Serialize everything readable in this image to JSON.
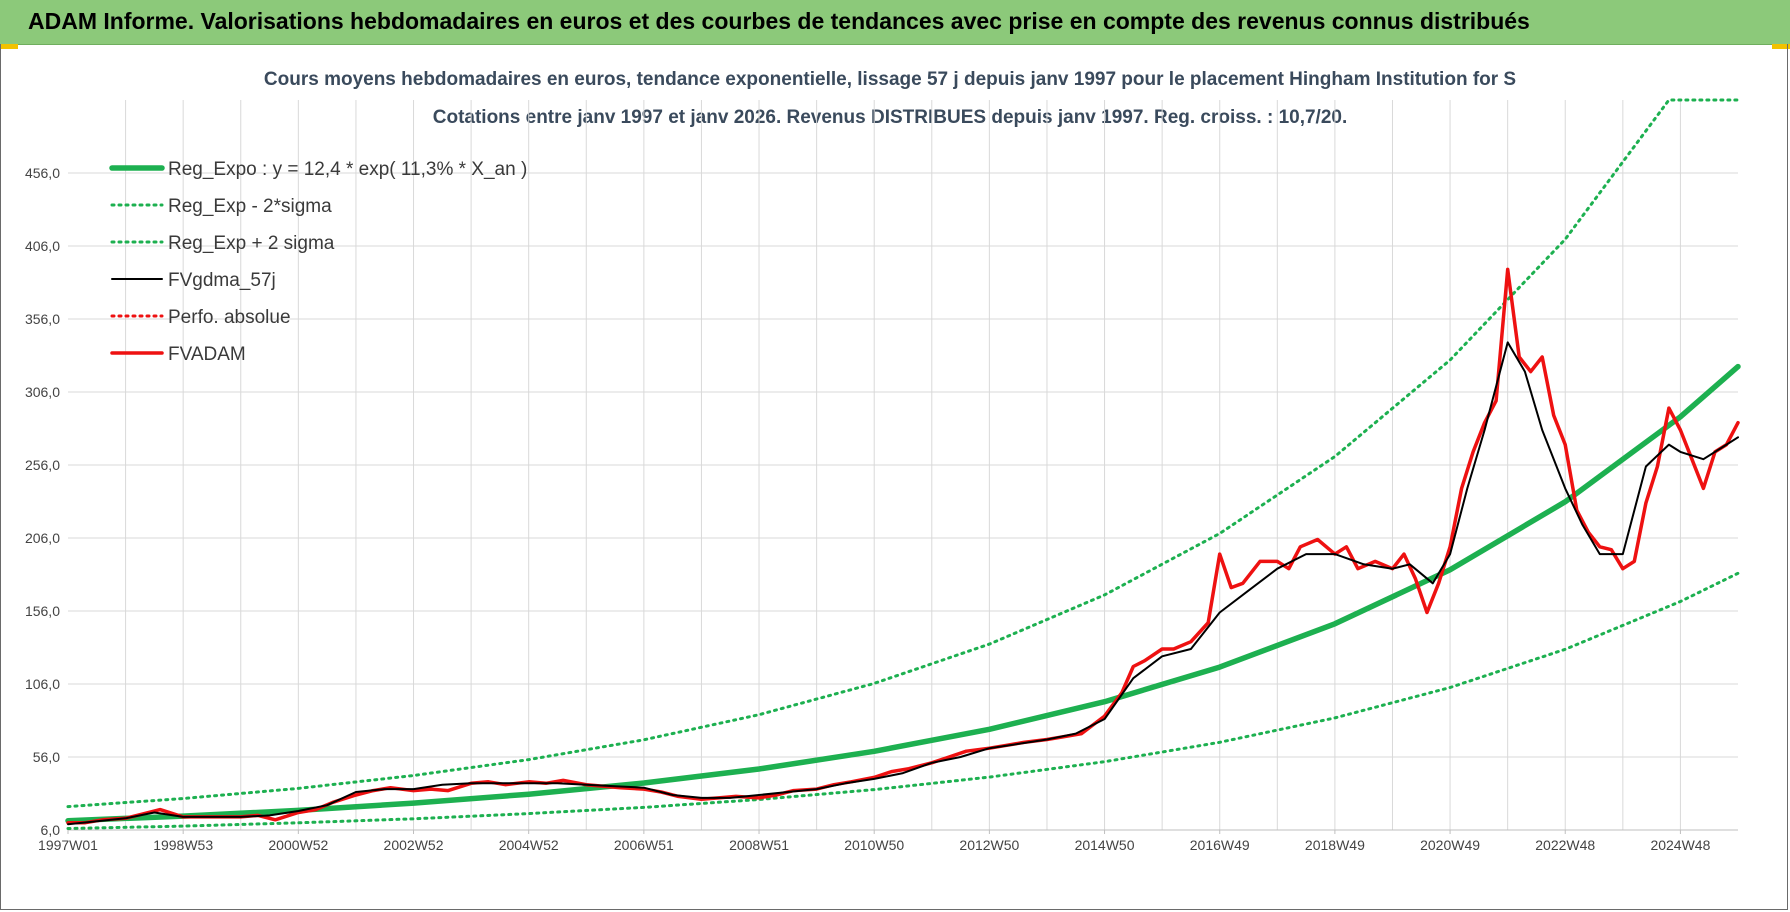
{
  "banner": {
    "title": "ADAM Informe. Valorisations hebdomadaires en euros et des courbes de tendances avec prise en compte des revenus connus distribués"
  },
  "colors": {
    "banner_bg": "#8cc97a",
    "trend_green": "#1db050",
    "price_red": "#ee1111",
    "smooth_black": "#000000",
    "grid": "#d9d9d9"
  },
  "chart_data": {
    "type": "line",
    "title_line1": "Cours moyens hebdomadaires en euros, tendance exponentielle, lissage 57 j depuis janv 1997  pour le placement Hingham Institution for S",
    "title_line2": "Cotations entre janv 1997 et janv 2026. Revenus DISTRIBUES depuis janv 1997. Reg. croiss. : 10,7/20.",
    "xlabel": "",
    "ylabel": "",
    "ylim": [
      6,
      506
    ],
    "xlim": [
      1997.0,
      2026.0
    ],
    "grid": true,
    "legend_position": "top-left",
    "y_ticks": [
      "6,0",
      "56,0",
      "106,0",
      "156,0",
      "206,0",
      "256,0",
      "306,0",
      "356,0",
      "406,0",
      "456,0"
    ],
    "x_ticks": [
      {
        "label": "1997W01",
        "x": 1997.0
      },
      {
        "label": "1998W53",
        "x": 1999.0
      },
      {
        "label": "2000W52",
        "x": 2001.0
      },
      {
        "label": "2002W52",
        "x": 2003.0
      },
      {
        "label": "2004W52",
        "x": 2005.0
      },
      {
        "label": "2006W51",
        "x": 2007.0
      },
      {
        "label": "2008W51",
        "x": 2009.0
      },
      {
        "label": "2010W50",
        "x": 2011.0
      },
      {
        "label": "2012W50",
        "x": 2013.0
      },
      {
        "label": "2014W50",
        "x": 2015.0
      },
      {
        "label": "2016W49",
        "x": 2017.0
      },
      {
        "label": "2018W49",
        "x": 2019.0
      },
      {
        "label": "2020W49",
        "x": 2021.0
      },
      {
        "label": "2022W48",
        "x": 2023.0
      },
      {
        "label": "2024W48",
        "x": 2025.0
      }
    ],
    "series": [
      {
        "name": "Reg_Expo : y = 12,4 * exp( 11,3% *  X_an )",
        "style": "solid-thick",
        "color": "#1db050",
        "x": [
          1997.0,
          1999.0,
          2001.0,
          2003.0,
          2005.0,
          2007.0,
          2009.0,
          2011.0,
          2013.0,
          2015.0,
          2017.0,
          2019.0,
          2021.0,
          2023.0,
          2025.0,
          2026.0
        ],
        "y": [
          12.4,
          15.5,
          19.4,
          24.4,
          30.5,
          38.2,
          47.8,
          59.9,
          75.0,
          93.9,
          117.6,
          147.2,
          184.3,
          230.8,
          289.0,
          323.4
        ]
      },
      {
        "name": "Reg_Exp - 2*sigma",
        "style": "dotted",
        "color": "#1db050",
        "x": [
          1997.0,
          1999.0,
          2001.0,
          2003.0,
          2005.0,
          2007.0,
          2009.0,
          2011.0,
          2013.0,
          2015.0,
          2017.0,
          2019.0,
          2021.0,
          2023.0,
          2025.0,
          2026.0
        ],
        "y": [
          7.0,
          8.7,
          10.9,
          13.7,
          17.2,
          21.5,
          26.9,
          33.7,
          42.2,
          52.8,
          66.1,
          82.8,
          103.6,
          129.8,
          162.5,
          181.8
        ]
      },
      {
        "name": "Reg_Exp + 2 sigma",
        "style": "dotted",
        "color": "#1db050",
        "x": [
          1997.0,
          1999.0,
          2001.0,
          2003.0,
          2005.0,
          2007.0,
          2009.0,
          2011.0,
          2013.0,
          2015.0,
          2017.0,
          2019.0,
          2021.0,
          2023.0,
          2024.8,
          2026.0
        ],
        "y": [
          22.0,
          27.6,
          34.5,
          43.3,
          54.2,
          67.8,
          85.0,
          106.4,
          133.3,
          167.0,
          209.1,
          261.8,
          327.9,
          410.6,
          506.0,
          506.0
        ]
      },
      {
        "name": "FVgdma_57j",
        "style": "solid-thin",
        "color": "#000000",
        "x": [
          1997.0,
          1997.5,
          1998.0,
          1998.5,
          1999.0,
          1999.5,
          2000.0,
          2000.5,
          2001.0,
          2001.5,
          2002.0,
          2002.5,
          2003.0,
          2003.5,
          2004.0,
          2004.5,
          2005.0,
          2005.5,
          2006.0,
          2006.5,
          2007.0,
          2007.5,
          2008.0,
          2008.5,
          2009.0,
          2009.5,
          2010.0,
          2010.5,
          2011.0,
          2011.5,
          2012.0,
          2012.5,
          2013.0,
          2013.5,
          2014.0,
          2014.5,
          2015.0,
          2015.5,
          2016.0,
          2016.5,
          2017.0,
          2017.5,
          2018.0,
          2018.5,
          2019.0,
          2019.5,
          2020.0,
          2020.3,
          2020.7,
          2021.0,
          2021.3,
          2021.6,
          2022.0,
          2022.3,
          2022.6,
          2023.0,
          2023.3,
          2023.6,
          2024.0,
          2024.4,
          2024.8,
          2025.0,
          2025.4,
          2025.8,
          2026.0
        ],
        "y": [
          10,
          12,
          14,
          18,
          15,
          15,
          15,
          16,
          19,
          23,
          32,
          34,
          34,
          37,
          38,
          38,
          38,
          38,
          37,
          36,
          35,
          30,
          28,
          28,
          30,
          32,
          34,
          38,
          41,
          45,
          52,
          56,
          62,
          65,
          68,
          72,
          82,
          110,
          125,
          130,
          155,
          170,
          185,
          195,
          195,
          188,
          185,
          188,
          175,
          195,
          240,
          280,
          340,
          320,
          280,
          240,
          215,
          195,
          195,
          255,
          270,
          265,
          260,
          270,
          275
        ]
      },
      {
        "name": "Perfo. absolue",
        "style": "dotted",
        "color": "#ee1111",
        "x": [],
        "y": []
      },
      {
        "name": "FVADAM",
        "style": "solid-thick",
        "color": "#ee1111",
        "x": [
          1997.0,
          1997.3,
          1997.6,
          1998.0,
          1998.3,
          1998.6,
          1999.0,
          1999.3,
          1999.6,
          2000.0,
          2000.3,
          2000.6,
          2001.0,
          2001.3,
          2001.6,
          2002.0,
          2002.3,
          2002.6,
          2003.0,
          2003.3,
          2003.6,
          2004.0,
          2004.3,
          2004.6,
          2005.0,
          2005.3,
          2005.6,
          2006.0,
          2006.3,
          2006.6,
          2007.0,
          2007.3,
          2007.6,
          2008.0,
          2008.3,
          2008.6,
          2009.0,
          2009.3,
          2009.6,
          2010.0,
          2010.3,
          2010.6,
          2011.0,
          2011.3,
          2011.6,
          2012.0,
          2012.3,
          2012.6,
          2013.0,
          2013.3,
          2013.6,
          2014.0,
          2014.3,
          2014.6,
          2015.0,
          2015.3,
          2015.5,
          2015.7,
          2016.0,
          2016.2,
          2016.5,
          2016.8,
          2017.0,
          2017.2,
          2017.4,
          2017.7,
          2018.0,
          2018.2,
          2018.4,
          2018.7,
          2019.0,
          2019.2,
          2019.4,
          2019.7,
          2020.0,
          2020.2,
          2020.4,
          2020.6,
          2020.8,
          2021.0,
          2021.2,
          2021.4,
          2021.6,
          2021.8,
          2022.0,
          2022.2,
          2022.4,
          2022.6,
          2022.8,
          2023.0,
          2023.2,
          2023.4,
          2023.6,
          2023.8,
          2024.0,
          2024.2,
          2024.4,
          2024.6,
          2024.8,
          2025.0,
          2025.2,
          2025.4,
          2025.6,
          2025.8,
          2026.0
        ],
        "y": [
          11,
          11,
          13,
          14,
          17,
          20,
          15,
          15,
          15,
          15,
          16,
          13,
          18,
          20,
          25,
          30,
          33,
          35,
          33,
          34,
          33,
          38,
          39,
          37,
          39,
          38,
          40,
          37,
          36,
          35,
          34,
          32,
          29,
          27,
          28,
          29,
          28,
          30,
          33,
          34,
          37,
          39,
          42,
          46,
          48,
          52,
          56,
          60,
          62,
          64,
          66,
          68,
          70,
          72,
          84,
          100,
          118,
          122,
          130,
          130,
          135,
          148,
          195,
          172,
          175,
          190,
          190,
          185,
          200,
          205,
          195,
          200,
          185,
          190,
          185,
          195,
          178,
          155,
          175,
          200,
          240,
          265,
          285,
          300,
          390,
          330,
          320,
          330,
          290,
          270,
          225,
          210,
          200,
          198,
          185,
          190,
          230,
          255,
          295,
          280,
          260,
          240,
          265,
          270,
          285
        ]
      }
    ]
  }
}
